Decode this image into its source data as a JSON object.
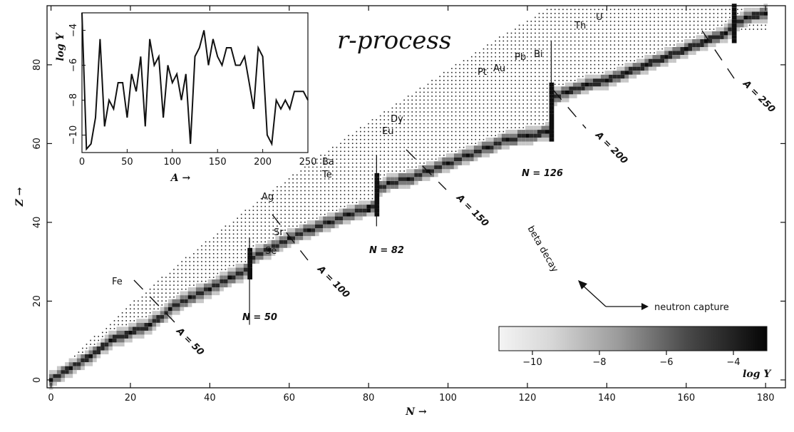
{
  "chart_data": [
    {
      "type": "heatmap",
      "title": "r-process",
      "xlabel": "N →",
      "ylabel": "Z →",
      "xlim": [
        -1,
        185
      ],
      "ylim": [
        -2,
        95
      ],
      "xticks": [
        0,
        20,
        40,
        60,
        80,
        100,
        120,
        140,
        160,
        180
      ],
      "yticks": [
        0,
        20,
        40,
        60,
        80
      ],
      "colorbar": {
        "label": "log Y",
        "range": [
          -11,
          -3
        ],
        "ticks": [
          -10,
          -8,
          -6,
          -4
        ],
        "colors": {
          "low": "#f4f4f4",
          "high": "#050505"
        }
      },
      "path_points": [
        [
          0,
          0
        ],
        [
          5,
          3
        ],
        [
          10,
          6
        ],
        [
          15,
          10
        ],
        [
          20,
          12
        ],
        [
          25,
          14
        ],
        [
          30,
          18
        ],
        [
          35,
          21
        ],
        [
          40,
          23
        ],
        [
          45,
          26
        ],
        [
          50,
          28
        ],
        [
          50,
          31
        ],
        [
          55,
          33
        ],
        [
          60,
          36
        ],
        [
          65,
          38
        ],
        [
          70,
          40
        ],
        [
          75,
          42
        ],
        [
          78,
          43
        ],
        [
          82,
          44
        ],
        [
          82,
          48
        ],
        [
          85,
          50
        ],
        [
          90,
          51
        ],
        [
          95,
          53
        ],
        [
          100,
          55
        ],
        [
          105,
          57
        ],
        [
          110,
          59
        ],
        [
          115,
          61
        ],
        [
          120,
          62
        ],
        [
          126,
          63
        ],
        [
          126,
          70
        ],
        [
          127,
          72
        ],
        [
          130,
          73
        ],
        [
          135,
          75
        ],
        [
          140,
          76
        ],
        [
          145,
          78
        ],
        [
          150,
          80
        ],
        [
          155,
          82
        ],
        [
          160,
          84
        ],
        [
          165,
          86
        ],
        [
          170,
          88
        ],
        [
          172,
          90
        ],
        [
          175,
          92
        ],
        [
          180,
          93
        ]
      ],
      "magic_numbers": [
        {
          "label": "N = 50",
          "n": 50
        },
        {
          "label": "N = 82",
          "n": 82
        },
        {
          "label": "N = 126",
          "n": 126
        }
      ],
      "mass_lines": [
        {
          "label": "A = 50"
        },
        {
          "label": "A = 100"
        },
        {
          "label": "A = 150"
        },
        {
          "label": "A = 200"
        },
        {
          "label": "A = 250"
        }
      ],
      "elements": [
        "Fe",
        "Se",
        "Sr",
        "Ag",
        "Te",
        "Ba",
        "Eu",
        "Dy",
        "Pt",
        "Au",
        "Pb",
        "Bi",
        "Th",
        "U"
      ],
      "arrows": {
        "beta": "beta decay",
        "capture": "neutron capture"
      }
    },
    {
      "type": "line",
      "xlabel": "A →",
      "ylabel": "log Y",
      "xlim": [
        0,
        250
      ],
      "ylim": [
        -11,
        -3
      ],
      "xticks": [
        0,
        50,
        100,
        150,
        200,
        250
      ],
      "yticks": [
        -4,
        -6,
        -8,
        -10
      ],
      "x": [
        0,
        5,
        10,
        15,
        20,
        25,
        30,
        35,
        40,
        45,
        50,
        55,
        60,
        65,
        70,
        75,
        80,
        85,
        90,
        95,
        100,
        105,
        110,
        115,
        120,
        125,
        130,
        135,
        140,
        145,
        150,
        155,
        160,
        165,
        170,
        175,
        180,
        185,
        190,
        195,
        200,
        205,
        210,
        215,
        220,
        225,
        230,
        235,
        240,
        245,
        250
      ],
      "y": [
        -3.0,
        -10.8,
        -10.5,
        -9.0,
        -4.5,
        -9.5,
        -8.0,
        -8.5,
        -7.0,
        -7.0,
        -9.0,
        -6.5,
        -7.5,
        -5.5,
        -9.5,
        -4.5,
        -6.0,
        -5.5,
        -9.0,
        -6.0,
        -7.0,
        -6.5,
        -8.0,
        -6.5,
        -10.5,
        -5.5,
        -5.0,
        -4.0,
        -6.0,
        -4.5,
        -5.5,
        -6.0,
        -5.0,
        -5.0,
        -6.0,
        -6.0,
        -5.5,
        -7.0,
        -8.5,
        -5.0,
        -5.5,
        -10.0,
        -10.5,
        -8.0,
        -8.5,
        -8.0,
        -8.5,
        -7.5,
        -7.5,
        -7.5,
        -8.0
      ]
    }
  ]
}
